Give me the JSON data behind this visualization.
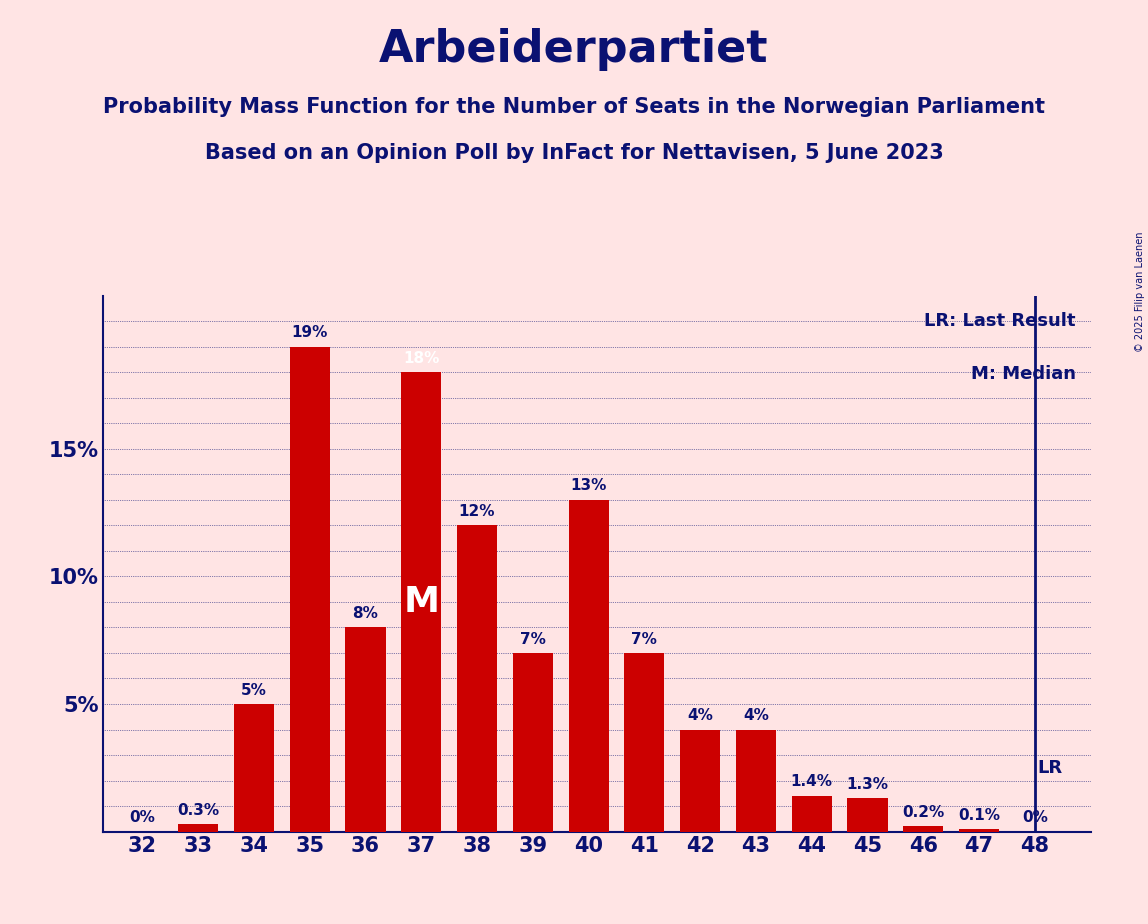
{
  "title": "Arbeiderpartiet",
  "subtitle1": "Probability Mass Function for the Number of Seats in the Norwegian Parliament",
  "subtitle2": "Based on an Opinion Poll by InFact for Nettavisen, 5 June 2023",
  "copyright": "© 2025 Filip van Laenen",
  "seats": [
    32,
    33,
    34,
    35,
    36,
    37,
    38,
    39,
    40,
    41,
    42,
    43,
    44,
    45,
    46,
    47,
    48
  ],
  "probabilities": [
    0.0,
    0.3,
    5.0,
    19.0,
    8.0,
    18.0,
    12.0,
    7.0,
    13.0,
    7.0,
    4.0,
    4.0,
    1.4,
    1.3,
    0.2,
    0.1,
    0.0
  ],
  "bar_color": "#CC0000",
  "background_color": "#FFE4E4",
  "title_color": "#0A1172",
  "label_color": "#0A1172",
  "median_color_inside": "#FFFFFF",
  "median_seat": 37,
  "lr_seat": 48,
  "ylim": [
    0,
    21
  ],
  "yticks": [
    0,
    5,
    10,
    15,
    20
  ],
  "ytick_labels": [
    "",
    "5%",
    "10%",
    "15%",
    ""
  ],
  "grid_yticks": [
    1,
    2,
    3,
    4,
    5,
    6,
    7,
    8,
    9,
    10,
    11,
    12,
    13,
    14,
    15,
    16,
    17,
    18,
    19,
    20
  ],
  "legend_lr": "LR: Last Result",
  "legend_m": "M: Median",
  "bar_labels": [
    "0%",
    "0.3%",
    "5%",
    "19%",
    "8%",
    "18%",
    "12%",
    "7%",
    "13%",
    "7%",
    "4%",
    "4%",
    "1.4%",
    "1.3%",
    "0.2%",
    "0.1%",
    "0%"
  ]
}
